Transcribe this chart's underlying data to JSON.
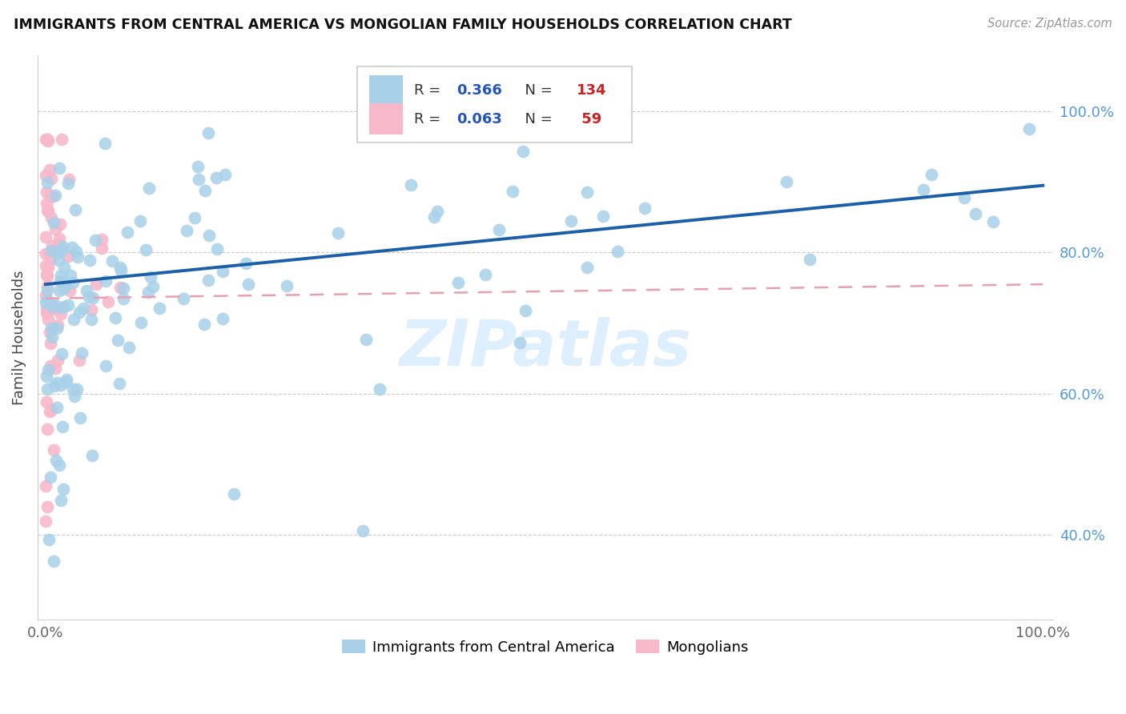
{
  "title": "IMMIGRANTS FROM CENTRAL AMERICA VS MONGOLIAN FAMILY HOUSEHOLDS CORRELATION CHART",
  "source": "Source: ZipAtlas.com",
  "ylabel": "Family Households",
  "blue_color": "#a8d0e8",
  "blue_edge_color": "#a8d0e8",
  "blue_line_color": "#1a5fa8",
  "pink_color": "#f7b8ca",
  "pink_edge_color": "#f7b8ca",
  "pink_line_color": "#e8a0b0",
  "right_tick_color": "#5599dd",
  "watermark": "ZIPatlas",
  "watermark_color": "#ddeeff",
  "legend_R_color": "#2255bb",
  "legend_N_color": "#cc2222",
  "ylim_min": 0.28,
  "ylim_max": 1.08,
  "xlim_min": -0.008,
  "xlim_max": 1.01,
  "blue_line_x0": 0.0,
  "blue_line_x1": 1.0,
  "blue_line_y0": 0.755,
  "blue_line_y1": 0.895,
  "pink_line_x0": 0.0,
  "pink_line_x1": 1.0,
  "pink_line_y0": 0.735,
  "pink_line_y1": 0.755
}
